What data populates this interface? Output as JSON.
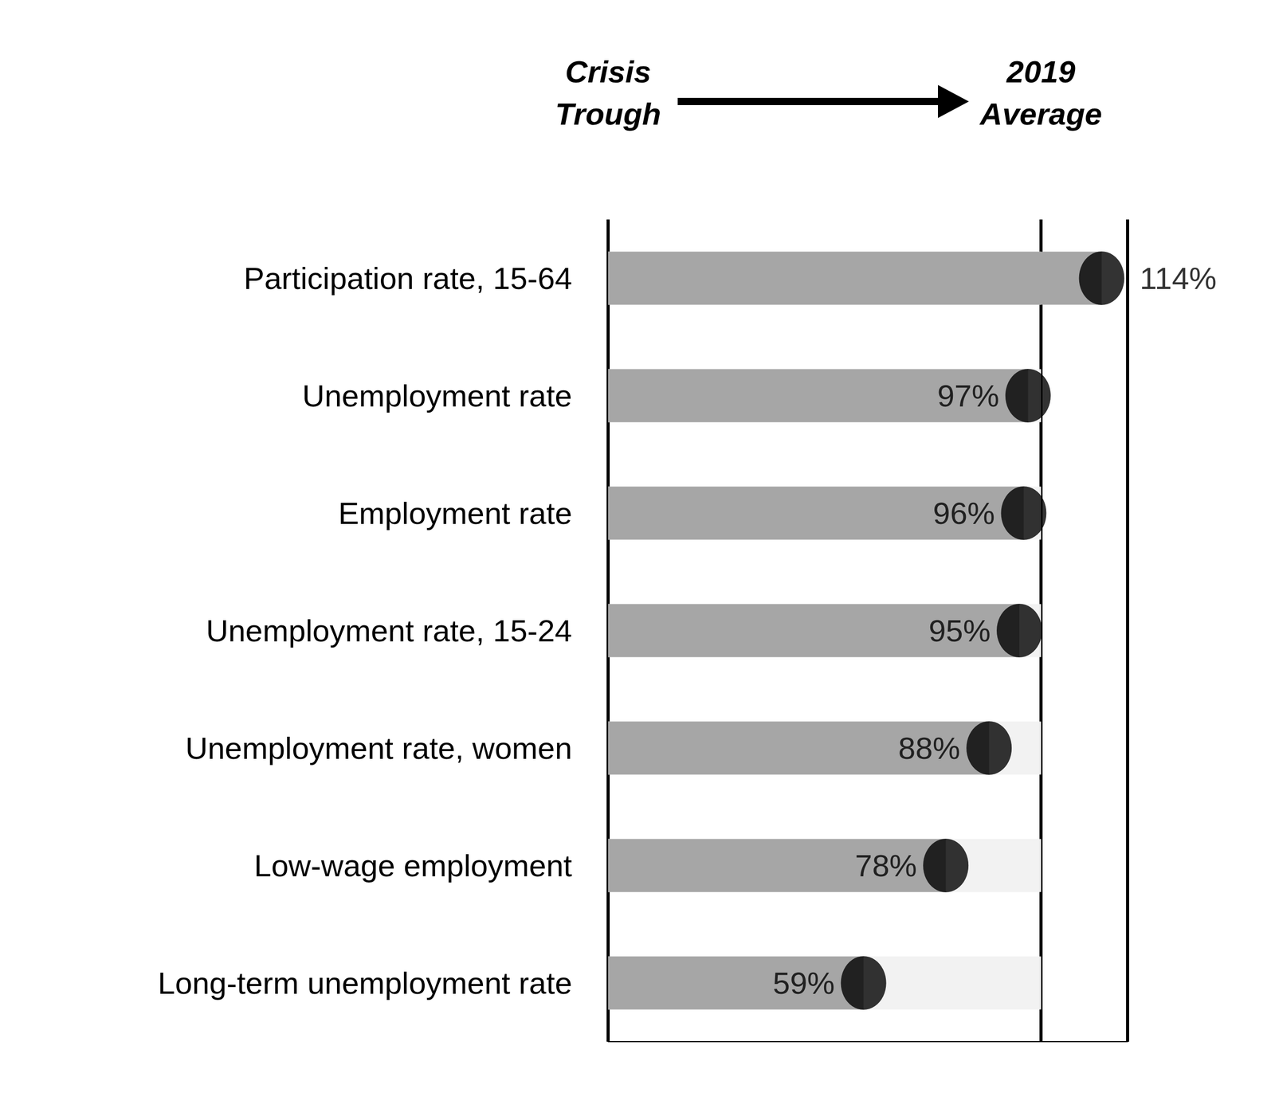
{
  "chart_data": {
    "type": "bar",
    "orientation": "horizontal",
    "categories": [
      "Participation rate, 15-64",
      "Unemployment rate",
      "Employment rate",
      "Unemployment rate, 15-24",
      "Unemployment rate, women",
      "Low-wage employment",
      "Long-term unemployment rate"
    ],
    "values": [
      114,
      97,
      96,
      95,
      88,
      78,
      59
    ],
    "value_labels": [
      "114%",
      "97%",
      "96%",
      "95%",
      "88%",
      "78%",
      "59%"
    ],
    "color": "#a6a6a6",
    "marker": "circle",
    "xlim": [
      0,
      120
    ],
    "xticks": [
      0,
      100
    ],
    "annotations": [
      "Crisis Trough",
      "2019 Average"
    ],
    "grid": true,
    "data_labels": true,
    "tick_labels": false
  }
}
